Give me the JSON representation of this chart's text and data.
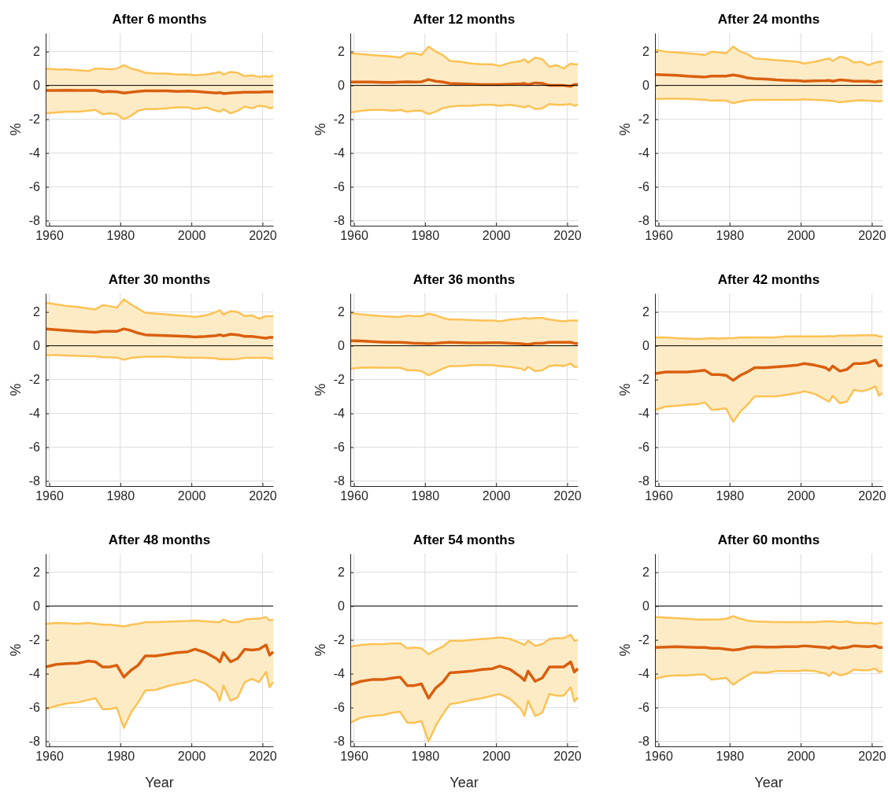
{
  "chart_data": [
    {
      "type": "line",
      "title": "After 6 months",
      "ylabel": "%",
      "x": [
        1959,
        1962,
        1965,
        1968,
        1971,
        1973,
        1975,
        1977,
        1979,
        1981,
        1983,
        1985,
        1987,
        1990,
        1993,
        1996,
        1999,
        2001,
        2004,
        2007,
        2008,
        2009,
        2011,
        2013,
        2015,
        2017,
        2019,
        2021,
        2022,
        2023
      ],
      "xlim": [
        1959,
        2023
      ],
      "xticks": [
        1960,
        1980,
        2000,
        2020
      ],
      "ylim": [
        -8.3,
        3.1
      ],
      "yticks": [
        -8,
        -6,
        -4,
        -2,
        0,
        2
      ],
      "grid": true,
      "ref_lines": [
        {
          "axis": "y",
          "value": 0,
          "color": "#000000"
        }
      ],
      "series": [
        {
          "color": "#fdc254",
          "values": [
            -1.65,
            -1.6,
            -1.55,
            -1.55,
            -1.5,
            -1.45,
            -1.7,
            -1.65,
            -1.7,
            -2.0,
            -1.8,
            -1.5,
            -1.4,
            -1.4,
            -1.35,
            -1.3,
            -1.3,
            -1.4,
            -1.3,
            -1.5,
            -1.55,
            -1.4,
            -1.65,
            -1.5,
            -1.25,
            -1.35,
            -1.2,
            -1.25,
            -1.35,
            -1.3
          ]
        },
        {
          "color": "#fdc254",
          "values": [
            1.0,
            0.95,
            0.95,
            0.9,
            0.85,
            1.0,
            1.0,
            0.95,
            1.0,
            1.2,
            1.0,
            0.9,
            0.75,
            0.7,
            0.7,
            0.65,
            0.65,
            0.6,
            0.65,
            0.75,
            0.8,
            0.65,
            0.8,
            0.75,
            0.55,
            0.6,
            0.5,
            0.55,
            0.5,
            0.6
          ]
        },
        {
          "color": "#d95f0e",
          "values": [
            -0.3,
            -0.3,
            -0.28,
            -0.3,
            -0.3,
            -0.3,
            -0.38,
            -0.35,
            -0.38,
            -0.45,
            -0.4,
            -0.35,
            -0.32,
            -0.32,
            -0.32,
            -0.35,
            -0.33,
            -0.35,
            -0.4,
            -0.45,
            -0.42,
            -0.48,
            -0.45,
            -0.42,
            -0.4,
            -0.4,
            -0.4,
            -0.38,
            -0.38,
            -0.38
          ],
          "lower": [
            -1.65,
            -1.6,
            -1.55,
            -1.55,
            -1.5,
            -1.45,
            -1.7,
            -1.65,
            -1.7,
            -2.0,
            -1.8,
            -1.5,
            -1.4,
            -1.4,
            -1.35,
            -1.3,
            -1.3,
            -1.4,
            -1.3,
            -1.5,
            -1.55,
            -1.4,
            -1.65,
            -1.5,
            -1.25,
            -1.35,
            -1.2,
            -1.25,
            -1.35,
            -1.3
          ],
          "upper": [
            1.0,
            0.95,
            0.95,
            0.9,
            0.85,
            1.0,
            1.0,
            0.95,
            1.0,
            1.2,
            1.0,
            0.9,
            0.75,
            0.7,
            0.7,
            0.65,
            0.65,
            0.6,
            0.65,
            0.75,
            0.8,
            0.65,
            0.8,
            0.75,
            0.55,
            0.6,
            0.5,
            0.55,
            0.5,
            0.6
          ]
        }
      ]
    },
    {
      "type": "line",
      "title": "After 12 months",
      "ylabel": "%",
      "x": [
        1959,
        1962,
        1965,
        1968,
        1971,
        1973,
        1975,
        1977,
        1979,
        1981,
        1983,
        1985,
        1987,
        1990,
        1993,
        1996,
        1999,
        2001,
        2004,
        2007,
        2008,
        2009,
        2011,
        2013,
        2015,
        2017,
        2019,
        2021,
        2022,
        2023
      ],
      "xlim": [
        1959,
        2023
      ],
      "xticks": [
        1960,
        1980,
        2000,
        2020
      ],
      "ylim": [
        -8.3,
        3.1
      ],
      "yticks": [
        -8,
        -6,
        -4,
        -2,
        0,
        2
      ],
      "grid": true,
      "ref_lines": [
        {
          "axis": "y",
          "value": 0,
          "color": "#000000"
        }
      ],
      "series": [
        {
          "color": "#fdc254",
          "values": [
            -1.6,
            -1.5,
            -1.45,
            -1.45,
            -1.5,
            -1.45,
            -1.55,
            -1.5,
            -1.5,
            -1.7,
            -1.55,
            -1.35,
            -1.25,
            -1.2,
            -1.2,
            -1.15,
            -1.15,
            -1.2,
            -1.15,
            -1.25,
            -1.3,
            -1.2,
            -1.4,
            -1.35,
            -1.1,
            -1.15,
            -1.15,
            -1.1,
            -1.2,
            -1.15
          ]
        },
        {
          "color": "#fdc254",
          "values": [
            1.9,
            1.85,
            1.8,
            1.75,
            1.7,
            1.65,
            1.9,
            1.9,
            1.8,
            2.3,
            2.0,
            1.8,
            1.45,
            1.4,
            1.3,
            1.25,
            1.25,
            1.15,
            1.35,
            1.45,
            1.55,
            1.35,
            1.65,
            1.55,
            1.1,
            1.2,
            1.0,
            1.3,
            1.25,
            1.25
          ]
        },
        {
          "color": "#d95f0e",
          "values": [
            0.2,
            0.2,
            0.2,
            0.18,
            0.18,
            0.2,
            0.22,
            0.2,
            0.22,
            0.35,
            0.25,
            0.2,
            0.12,
            0.1,
            0.08,
            0.05,
            0.05,
            0.05,
            0.08,
            0.1,
            0.12,
            0.05,
            0.15,
            0.12,
            0.0,
            0.0,
            0.0,
            -0.05,
            0.05,
            0.05
          ],
          "lower": [
            -1.6,
            -1.5,
            -1.45,
            -1.45,
            -1.5,
            -1.45,
            -1.55,
            -1.5,
            -1.5,
            -1.7,
            -1.55,
            -1.35,
            -1.25,
            -1.2,
            -1.2,
            -1.15,
            -1.15,
            -1.2,
            -1.15,
            -1.25,
            -1.3,
            -1.2,
            -1.4,
            -1.35,
            -1.1,
            -1.15,
            -1.15,
            -1.1,
            -1.2,
            -1.15
          ],
          "upper": [
            1.9,
            1.85,
            1.8,
            1.75,
            1.7,
            1.65,
            1.9,
            1.9,
            1.8,
            2.3,
            2.0,
            1.8,
            1.45,
            1.4,
            1.3,
            1.25,
            1.25,
            1.15,
            1.35,
            1.45,
            1.55,
            1.35,
            1.65,
            1.55,
            1.1,
            1.2,
            1.0,
            1.3,
            1.25,
            1.25
          ]
        }
      ]
    },
    {
      "type": "line",
      "title": "After 24 months",
      "ylabel": "%",
      "x": [
        1959,
        1962,
        1965,
        1968,
        1971,
        1973,
        1975,
        1977,
        1979,
        1981,
        1983,
        1985,
        1987,
        1990,
        1993,
        1996,
        1999,
        2001,
        2004,
        2007,
        2008,
        2009,
        2011,
        2013,
        2015,
        2017,
        2019,
        2021,
        2022,
        2023
      ],
      "xlim": [
        1959,
        2023
      ],
      "xticks": [
        1960,
        1980,
        2000,
        2020
      ],
      "ylim": [
        -8.3,
        3.1
      ],
      "yticks": [
        -8,
        -6,
        -4,
        -2,
        0,
        2
      ],
      "grid": true,
      "ref_lines": [
        {
          "axis": "y",
          "value": 0,
          "color": "#000000"
        }
      ],
      "series": [
        {
          "color": "#fdc254",
          "values": [
            -0.8,
            -0.78,
            -0.78,
            -0.8,
            -0.82,
            -0.85,
            -0.9,
            -0.88,
            -0.9,
            -1.05,
            -0.95,
            -0.88,
            -0.85,
            -0.85,
            -0.85,
            -0.85,
            -0.85,
            -0.82,
            -0.85,
            -0.88,
            -0.9,
            -0.92,
            -1.0,
            -0.95,
            -0.9,
            -0.88,
            -0.9,
            -0.92,
            -0.95,
            -0.9
          ]
        },
        {
          "color": "#fdc254",
          "values": [
            2.1,
            2.0,
            1.95,
            1.9,
            1.85,
            1.8,
            2.0,
            1.95,
            1.9,
            2.3,
            2.0,
            1.85,
            1.6,
            1.55,
            1.5,
            1.45,
            1.4,
            1.3,
            1.4,
            1.55,
            1.6,
            1.45,
            1.7,
            1.6,
            1.35,
            1.4,
            1.2,
            1.35,
            1.4,
            1.4
          ]
        },
        {
          "color": "#d95f0e",
          "values": [
            0.65,
            0.62,
            0.6,
            0.55,
            0.52,
            0.5,
            0.55,
            0.55,
            0.55,
            0.62,
            0.55,
            0.45,
            0.4,
            0.38,
            0.33,
            0.3,
            0.28,
            0.25,
            0.27,
            0.28,
            0.3,
            0.25,
            0.33,
            0.3,
            0.25,
            0.25,
            0.25,
            0.2,
            0.25,
            0.25
          ],
          "lower": [
            -0.8,
            -0.78,
            -0.78,
            -0.8,
            -0.82,
            -0.85,
            -0.9,
            -0.88,
            -0.9,
            -1.05,
            -0.95,
            -0.88,
            -0.85,
            -0.85,
            -0.85,
            -0.85,
            -0.85,
            -0.82,
            -0.85,
            -0.88,
            -0.9,
            -0.92,
            -1.0,
            -0.95,
            -0.9,
            -0.88,
            -0.9,
            -0.92,
            -0.95,
            -0.9
          ],
          "upper": [
            2.1,
            2.0,
            1.95,
            1.9,
            1.85,
            1.8,
            2.0,
            1.95,
            1.9,
            2.3,
            2.0,
            1.85,
            1.6,
            1.55,
            1.5,
            1.45,
            1.4,
            1.3,
            1.4,
            1.55,
            1.6,
            1.45,
            1.7,
            1.6,
            1.35,
            1.4,
            1.2,
            1.35,
            1.4,
            1.4
          ]
        }
      ]
    },
    {
      "type": "line",
      "title": "After 30 months",
      "ylabel": "%",
      "x": [
        1959,
        1962,
        1965,
        1968,
        1971,
        1973,
        1975,
        1977,
        1979,
        1981,
        1983,
        1985,
        1987,
        1990,
        1993,
        1996,
        1999,
        2001,
        2004,
        2007,
        2008,
        2009,
        2011,
        2013,
        2015,
        2017,
        2019,
        2021,
        2022,
        2023
      ],
      "xlim": [
        1959,
        2023
      ],
      "xticks": [
        1960,
        1980,
        2000,
        2020
      ],
      "ylim": [
        -8.3,
        3.1
      ],
      "yticks": [
        -8,
        -6,
        -4,
        -2,
        0,
        2
      ],
      "grid": true,
      "ref_lines": [
        {
          "axis": "y",
          "value": 0,
          "color": "#000000"
        }
      ],
      "series": [
        {
          "color": "#fdc254",
          "values": [
            -0.55,
            -0.55,
            -0.58,
            -0.6,
            -0.62,
            -0.62,
            -0.68,
            -0.68,
            -0.7,
            -0.82,
            -0.72,
            -0.68,
            -0.65,
            -0.65,
            -0.65,
            -0.68,
            -0.7,
            -0.7,
            -0.72,
            -0.75,
            -0.8,
            -0.78,
            -0.8,
            -0.78,
            -0.72,
            -0.72,
            -0.72,
            -0.7,
            -0.75,
            -0.75
          ]
        },
        {
          "color": "#fdc254",
          "values": [
            2.55,
            2.45,
            2.35,
            2.3,
            2.2,
            2.15,
            2.4,
            2.35,
            2.25,
            2.75,
            2.45,
            2.2,
            1.95,
            1.9,
            1.85,
            1.8,
            1.75,
            1.7,
            1.8,
            2.0,
            2.1,
            1.85,
            2.05,
            2.0,
            1.75,
            1.8,
            1.6,
            1.75,
            1.75,
            1.75
          ]
        },
        {
          "color": "#d95f0e",
          "values": [
            1.0,
            0.95,
            0.9,
            0.85,
            0.82,
            0.8,
            0.85,
            0.85,
            0.85,
            1.0,
            0.9,
            0.75,
            0.65,
            0.62,
            0.6,
            0.57,
            0.55,
            0.52,
            0.55,
            0.6,
            0.65,
            0.58,
            0.68,
            0.65,
            0.55,
            0.55,
            0.5,
            0.45,
            0.5,
            0.5
          ],
          "lower": [
            -0.55,
            -0.55,
            -0.58,
            -0.6,
            -0.62,
            -0.62,
            -0.68,
            -0.68,
            -0.7,
            -0.82,
            -0.72,
            -0.68,
            -0.65,
            -0.65,
            -0.65,
            -0.68,
            -0.7,
            -0.7,
            -0.72,
            -0.75,
            -0.8,
            -0.78,
            -0.8,
            -0.78,
            -0.72,
            -0.72,
            -0.72,
            -0.7,
            -0.75,
            -0.75
          ],
          "upper": [
            2.55,
            2.45,
            2.35,
            2.3,
            2.2,
            2.15,
            2.4,
            2.35,
            2.25,
            2.75,
            2.45,
            2.2,
            1.95,
            1.9,
            1.85,
            1.8,
            1.75,
            1.7,
            1.8,
            2.0,
            2.1,
            1.85,
            2.05,
            2.0,
            1.75,
            1.8,
            1.6,
            1.75,
            1.75,
            1.75
          ]
        }
      ]
    },
    {
      "type": "line",
      "title": "After 36 months",
      "ylabel": "%",
      "x": [
        1959,
        1962,
        1965,
        1968,
        1971,
        1973,
        1975,
        1977,
        1979,
        1981,
        1983,
        1985,
        1987,
        1990,
        1993,
        1996,
        1999,
        2001,
        2004,
        2007,
        2008,
        2009,
        2011,
        2013,
        2015,
        2017,
        2019,
        2021,
        2022,
        2023
      ],
      "xlim": [
        1959,
        2023
      ],
      "xticks": [
        1960,
        1980,
        2000,
        2020
      ],
      "ylim": [
        -8.3,
        3.1
      ],
      "yticks": [
        -8,
        -6,
        -4,
        -2,
        0,
        2
      ],
      "grid": true,
      "ref_lines": [
        {
          "axis": "y",
          "value": 0,
          "color": "#000000"
        }
      ],
      "series": [
        {
          "color": "#fdc254",
          "values": [
            -1.35,
            -1.3,
            -1.28,
            -1.3,
            -1.3,
            -1.3,
            -1.45,
            -1.45,
            -1.5,
            -1.75,
            -1.55,
            -1.35,
            -1.2,
            -1.2,
            -1.15,
            -1.15,
            -1.15,
            -1.2,
            -1.25,
            -1.35,
            -1.45,
            -1.25,
            -1.5,
            -1.45,
            -1.2,
            -1.15,
            -1.2,
            -1.05,
            -1.25,
            -1.25
          ]
        },
        {
          "color": "#fdc254",
          "values": [
            1.95,
            1.85,
            1.8,
            1.75,
            1.72,
            1.7,
            1.78,
            1.75,
            1.75,
            1.9,
            1.8,
            1.65,
            1.55,
            1.55,
            1.52,
            1.5,
            1.5,
            1.45,
            1.55,
            1.6,
            1.65,
            1.6,
            1.65,
            1.65,
            1.55,
            1.5,
            1.45,
            1.5,
            1.5,
            1.5
          ]
        },
        {
          "color": "#d95f0e",
          "values": [
            0.3,
            0.28,
            0.25,
            0.22,
            0.2,
            0.2,
            0.18,
            0.15,
            0.15,
            0.12,
            0.15,
            0.18,
            0.2,
            0.18,
            0.17,
            0.17,
            0.18,
            0.18,
            0.15,
            0.12,
            0.1,
            0.08,
            0.15,
            0.15,
            0.2,
            0.2,
            0.2,
            0.2,
            0.15,
            0.12
          ],
          "lower": [
            -1.35,
            -1.3,
            -1.28,
            -1.3,
            -1.3,
            -1.3,
            -1.45,
            -1.45,
            -1.5,
            -1.75,
            -1.55,
            -1.35,
            -1.2,
            -1.2,
            -1.15,
            -1.15,
            -1.15,
            -1.2,
            -1.25,
            -1.35,
            -1.45,
            -1.25,
            -1.5,
            -1.45,
            -1.2,
            -1.15,
            -1.2,
            -1.05,
            -1.25,
            -1.25
          ],
          "upper": [
            1.95,
            1.85,
            1.8,
            1.75,
            1.72,
            1.7,
            1.78,
            1.75,
            1.75,
            1.9,
            1.8,
            1.65,
            1.55,
            1.55,
            1.52,
            1.5,
            1.5,
            1.45,
            1.55,
            1.6,
            1.65,
            1.6,
            1.65,
            1.65,
            1.55,
            1.5,
            1.45,
            1.5,
            1.5,
            1.5
          ]
        }
      ]
    },
    {
      "type": "line",
      "title": "After 42 months",
      "ylabel": "%",
      "x": [
        1959,
        1962,
        1965,
        1968,
        1971,
        1973,
        1975,
        1977,
        1979,
        1981,
        1983,
        1985,
        1987,
        1990,
        1993,
        1996,
        1999,
        2001,
        2004,
        2007,
        2008,
        2009,
        2011,
        2013,
        2015,
        2017,
        2019,
        2021,
        2022,
        2023
      ],
      "xlim": [
        1959,
        2023
      ],
      "xticks": [
        1960,
        1980,
        2000,
        2020
      ],
      "ylim": [
        -8.3,
        3.1
      ],
      "yticks": [
        -8,
        -6,
        -4,
        -2,
        0,
        2
      ],
      "grid": true,
      "ref_lines": [
        {
          "axis": "y",
          "value": 0,
          "color": "#000000"
        }
      ],
      "series": [
        {
          "color": "#fdc254",
          "values": [
            -3.8,
            -3.6,
            -3.55,
            -3.5,
            -3.45,
            -3.35,
            -3.8,
            -3.75,
            -3.7,
            -4.5,
            -3.9,
            -3.5,
            -3.0,
            -3.0,
            -3.0,
            -2.9,
            -2.8,
            -2.7,
            -2.85,
            -3.2,
            -3.3,
            -2.95,
            -3.4,
            -3.3,
            -2.6,
            -2.7,
            -2.6,
            -2.4,
            -2.95,
            -2.8
          ]
        },
        {
          "color": "#fdc254",
          "values": [
            0.5,
            0.5,
            0.45,
            0.42,
            0.4,
            0.42,
            0.45,
            0.42,
            0.45,
            0.45,
            0.5,
            0.5,
            0.5,
            0.5,
            0.5,
            0.55,
            0.55,
            0.55,
            0.55,
            0.55,
            0.58,
            0.55,
            0.6,
            0.6,
            0.6,
            0.62,
            0.62,
            0.62,
            0.55,
            0.55
          ]
        },
        {
          "color": "#d95f0e",
          "values": [
            -1.65,
            -1.55,
            -1.55,
            -1.55,
            -1.5,
            -1.45,
            -1.7,
            -1.7,
            -1.75,
            -2.05,
            -1.75,
            -1.55,
            -1.3,
            -1.3,
            -1.25,
            -1.2,
            -1.15,
            -1.05,
            -1.15,
            -1.3,
            -1.45,
            -1.2,
            -1.5,
            -1.4,
            -1.05,
            -1.05,
            -1.0,
            -0.85,
            -1.2,
            -1.15
          ],
          "lower": [
            -3.8,
            -3.6,
            -3.55,
            -3.5,
            -3.45,
            -3.35,
            -3.8,
            -3.75,
            -3.7,
            -4.5,
            -3.9,
            -3.5,
            -3.0,
            -3.0,
            -3.0,
            -2.9,
            -2.8,
            -2.7,
            -2.85,
            -3.2,
            -3.3,
            -2.95,
            -3.4,
            -3.3,
            -2.6,
            -2.7,
            -2.6,
            -2.4,
            -2.95,
            -2.8
          ],
          "upper": [
            0.5,
            0.5,
            0.45,
            0.42,
            0.4,
            0.42,
            0.45,
            0.42,
            0.45,
            0.45,
            0.5,
            0.5,
            0.5,
            0.5,
            0.5,
            0.55,
            0.55,
            0.55,
            0.55,
            0.55,
            0.58,
            0.55,
            0.6,
            0.6,
            0.6,
            0.62,
            0.62,
            0.62,
            0.55,
            0.55
          ]
        }
      ]
    },
    {
      "type": "line",
      "title": "After 48 months",
      "xlabel": "Year",
      "ylabel": "%",
      "x": [
        1959,
        1962,
        1965,
        1968,
        1971,
        1973,
        1975,
        1977,
        1979,
        1981,
        1983,
        1985,
        1987,
        1990,
        1993,
        1996,
        1999,
        2001,
        2004,
        2007,
        2008,
        2009,
        2011,
        2013,
        2015,
        2017,
        2019,
        2021,
        2022,
        2023
      ],
      "xlim": [
        1959,
        2023
      ],
      "xticks": [
        1960,
        1980,
        2000,
        2020
      ],
      "ylim": [
        -8.3,
        3.1
      ],
      "yticks": [
        -8,
        -6,
        -4,
        -2,
        0,
        2
      ],
      "grid": true,
      "ref_lines": [
        {
          "axis": "y",
          "value": 0,
          "color": "#000000"
        }
      ],
      "series": [
        {
          "color": "#fdc254",
          "values": [
            -6.1,
            -5.9,
            -5.75,
            -5.7,
            -5.55,
            -5.45,
            -6.1,
            -6.1,
            -6.0,
            -7.2,
            -6.3,
            -5.7,
            -5.0,
            -4.95,
            -4.75,
            -4.6,
            -4.5,
            -4.35,
            -4.6,
            -5.1,
            -5.6,
            -4.7,
            -5.6,
            -5.4,
            -4.5,
            -4.3,
            -4.5,
            -3.9,
            -4.8,
            -4.5
          ]
        },
        {
          "color": "#fdc254",
          "values": [
            -1.05,
            -1.0,
            -1.02,
            -1.05,
            -1.0,
            -1.05,
            -1.1,
            -1.1,
            -1.15,
            -1.2,
            -1.1,
            -1.05,
            -0.95,
            -0.95,
            -0.92,
            -0.9,
            -0.88,
            -0.85,
            -0.9,
            -0.95,
            -0.95,
            -0.8,
            -0.95,
            -0.95,
            -0.8,
            -0.75,
            -0.75,
            -0.65,
            -0.85,
            -0.8
          ]
        },
        {
          "color": "#d95f0e",
          "values": [
            -3.6,
            -3.45,
            -3.4,
            -3.38,
            -3.25,
            -3.3,
            -3.6,
            -3.6,
            -3.5,
            -4.2,
            -3.8,
            -3.5,
            -2.95,
            -2.95,
            -2.85,
            -2.75,
            -2.7,
            -2.55,
            -2.75,
            -3.1,
            -3.3,
            -2.75,
            -3.3,
            -3.1,
            -2.55,
            -2.6,
            -2.55,
            -2.3,
            -2.9,
            -2.7
          ],
          "lower": [
            -6.1,
            -5.9,
            -5.75,
            -5.7,
            -5.55,
            -5.45,
            -6.1,
            -6.1,
            -6.0,
            -7.2,
            -6.3,
            -5.7,
            -5.0,
            -4.95,
            -4.75,
            -4.6,
            -4.5,
            -4.35,
            -4.6,
            -5.1,
            -5.6,
            -4.7,
            -5.6,
            -5.4,
            -4.5,
            -4.3,
            -4.5,
            -3.9,
            -4.8,
            -4.5
          ],
          "upper": [
            -1.05,
            -1.0,
            -1.02,
            -1.05,
            -1.0,
            -1.05,
            -1.1,
            -1.1,
            -1.15,
            -1.2,
            -1.1,
            -1.05,
            -0.95,
            -0.95,
            -0.92,
            -0.9,
            -0.88,
            -0.85,
            -0.9,
            -0.95,
            -0.95,
            -0.8,
            -0.95,
            -0.95,
            -0.8,
            -0.75,
            -0.75,
            -0.65,
            -0.85,
            -0.8
          ]
        }
      ]
    },
    {
      "type": "line",
      "title": "After 54 months",
      "xlabel": "Year",
      "ylabel": "%",
      "x": [
        1959,
        1962,
        1965,
        1968,
        1971,
        1973,
        1975,
        1977,
        1979,
        1981,
        1983,
        1985,
        1987,
        1990,
        1993,
        1996,
        1999,
        2001,
        2004,
        2007,
        2008,
        2009,
        2011,
        2013,
        2015,
        2017,
        2019,
        2021,
        2022,
        2023
      ],
      "xlim": [
        1959,
        2023
      ],
      "xticks": [
        1960,
        1980,
        2000,
        2020
      ],
      "ylim": [
        -8.3,
        3.1
      ],
      "yticks": [
        -8,
        -6,
        -4,
        -2,
        0,
        2
      ],
      "grid": true,
      "ref_lines": [
        {
          "axis": "y",
          "value": 0,
          "color": "#000000"
        }
      ],
      "series": [
        {
          "color": "#fdc254",
          "values": [
            -6.9,
            -6.6,
            -6.5,
            -6.45,
            -6.3,
            -6.25,
            -6.9,
            -6.9,
            -6.8,
            -8.0,
            -7.1,
            -6.4,
            -5.8,
            -5.7,
            -5.55,
            -5.45,
            -5.3,
            -5.2,
            -5.5,
            -6.1,
            -6.5,
            -5.6,
            -6.5,
            -6.3,
            -5.2,
            -5.3,
            -5.3,
            -4.8,
            -5.65,
            -5.4
          ]
        },
        {
          "color": "#fdc254",
          "values": [
            -2.4,
            -2.3,
            -2.25,
            -2.25,
            -2.2,
            -2.2,
            -2.5,
            -2.45,
            -2.5,
            -2.85,
            -2.6,
            -2.4,
            -2.05,
            -2.05,
            -2.0,
            -1.95,
            -1.9,
            -1.85,
            -1.95,
            -2.2,
            -2.3,
            -2.05,
            -2.35,
            -2.25,
            -1.95,
            -1.9,
            -1.9,
            -1.7,
            -2.05,
            -2.0
          ]
        },
        {
          "color": "#d95f0e",
          "values": [
            -4.65,
            -4.45,
            -4.35,
            -4.35,
            -4.25,
            -4.2,
            -4.7,
            -4.7,
            -4.6,
            -5.45,
            -4.85,
            -4.5,
            -3.95,
            -3.9,
            -3.85,
            -3.75,
            -3.7,
            -3.55,
            -3.75,
            -4.2,
            -4.4,
            -3.85,
            -4.45,
            -4.25,
            -3.6,
            -3.6,
            -3.6,
            -3.3,
            -3.9,
            -3.7
          ],
          "lower": [
            -6.9,
            -6.6,
            -6.5,
            -6.45,
            -6.3,
            -6.25,
            -6.9,
            -6.9,
            -6.8,
            -8.0,
            -7.1,
            -6.4,
            -5.8,
            -5.7,
            -5.55,
            -5.45,
            -5.3,
            -5.2,
            -5.5,
            -6.1,
            -6.5,
            -5.6,
            -6.5,
            -6.3,
            -5.2,
            -5.3,
            -5.3,
            -4.8,
            -5.65,
            -5.4
          ],
          "upper": [
            -2.4,
            -2.3,
            -2.25,
            -2.25,
            -2.2,
            -2.2,
            -2.5,
            -2.45,
            -2.5,
            -2.85,
            -2.6,
            -2.4,
            -2.05,
            -2.05,
            -2.0,
            -1.95,
            -1.9,
            -1.85,
            -1.95,
            -2.2,
            -2.3,
            -2.05,
            -2.35,
            -2.25,
            -1.95,
            -1.9,
            -1.9,
            -1.7,
            -2.05,
            -2.0
          ]
        }
      ]
    },
    {
      "type": "line",
      "title": "After 60 months",
      "xlabel": "Year",
      "ylabel": "%",
      "x": [
        1959,
        1962,
        1965,
        1968,
        1971,
        1973,
        1975,
        1977,
        1979,
        1981,
        1983,
        1985,
        1987,
        1990,
        1993,
        1996,
        1999,
        2001,
        2004,
        2007,
        2008,
        2009,
        2011,
        2013,
        2015,
        2017,
        2019,
        2021,
        2022,
        2023
      ],
      "xlim": [
        1959,
        2023
      ],
      "xticks": [
        1960,
        1980,
        2000,
        2020
      ],
      "ylim": [
        -8.3,
        3.1
      ],
      "yticks": [
        -8,
        -6,
        -4,
        -2,
        0,
        2
      ],
      "grid": true,
      "ref_lines": [
        {
          "axis": "y",
          "value": 0,
          "color": "#000000"
        }
      ],
      "series": [
        {
          "color": "#fdc254",
          "values": [
            -4.3,
            -4.15,
            -4.1,
            -4.1,
            -4.05,
            -4.05,
            -4.35,
            -4.3,
            -4.25,
            -4.65,
            -4.35,
            -4.1,
            -3.9,
            -3.95,
            -3.85,
            -3.85,
            -3.85,
            -3.8,
            -3.85,
            -4.0,
            -4.15,
            -3.9,
            -4.1,
            -4.0,
            -3.75,
            -3.8,
            -3.8,
            -3.7,
            -3.9,
            -3.85
          ]
        },
        {
          "color": "#fdc254",
          "values": [
            -0.65,
            -0.68,
            -0.72,
            -0.75,
            -0.8,
            -0.8,
            -0.8,
            -0.78,
            -0.75,
            -0.6,
            -0.75,
            -0.85,
            -0.9,
            -0.92,
            -0.95,
            -0.95,
            -0.95,
            -0.95,
            -0.95,
            -0.9,
            -0.9,
            -0.9,
            -0.95,
            -0.9,
            -1.0,
            -1.0,
            -1.0,
            -1.05,
            -1.0,
            -1.0
          ]
        },
        {
          "color": "#d95f0e",
          "values": [
            -2.45,
            -2.42,
            -2.4,
            -2.42,
            -2.45,
            -2.45,
            -2.5,
            -2.5,
            -2.55,
            -2.6,
            -2.55,
            -2.45,
            -2.4,
            -2.42,
            -2.42,
            -2.4,
            -2.4,
            -2.35,
            -2.4,
            -2.45,
            -2.5,
            -2.4,
            -2.5,
            -2.45,
            -2.35,
            -2.38,
            -2.4,
            -2.35,
            -2.45,
            -2.45
          ],
          "lower": [
            -4.3,
            -4.15,
            -4.1,
            -4.1,
            -4.05,
            -4.05,
            -4.35,
            -4.3,
            -4.25,
            -4.65,
            -4.35,
            -4.1,
            -3.9,
            -3.95,
            -3.85,
            -3.85,
            -3.85,
            -3.8,
            -3.85,
            -4.0,
            -4.15,
            -3.9,
            -4.1,
            -4.0,
            -3.75,
            -3.8,
            -3.8,
            -3.7,
            -3.9,
            -3.85
          ],
          "upper": [
            -0.65,
            -0.68,
            -0.72,
            -0.75,
            -0.8,
            -0.8,
            -0.8,
            -0.78,
            -0.75,
            -0.6,
            -0.75,
            -0.85,
            -0.9,
            -0.92,
            -0.95,
            -0.95,
            -0.95,
            -0.95,
            -0.95,
            -0.9,
            -0.9,
            -0.9,
            -0.95,
            -0.9,
            -1.0,
            -1.0,
            -1.0,
            -1.05,
            -1.0,
            -1.0
          ]
        }
      ]
    }
  ]
}
